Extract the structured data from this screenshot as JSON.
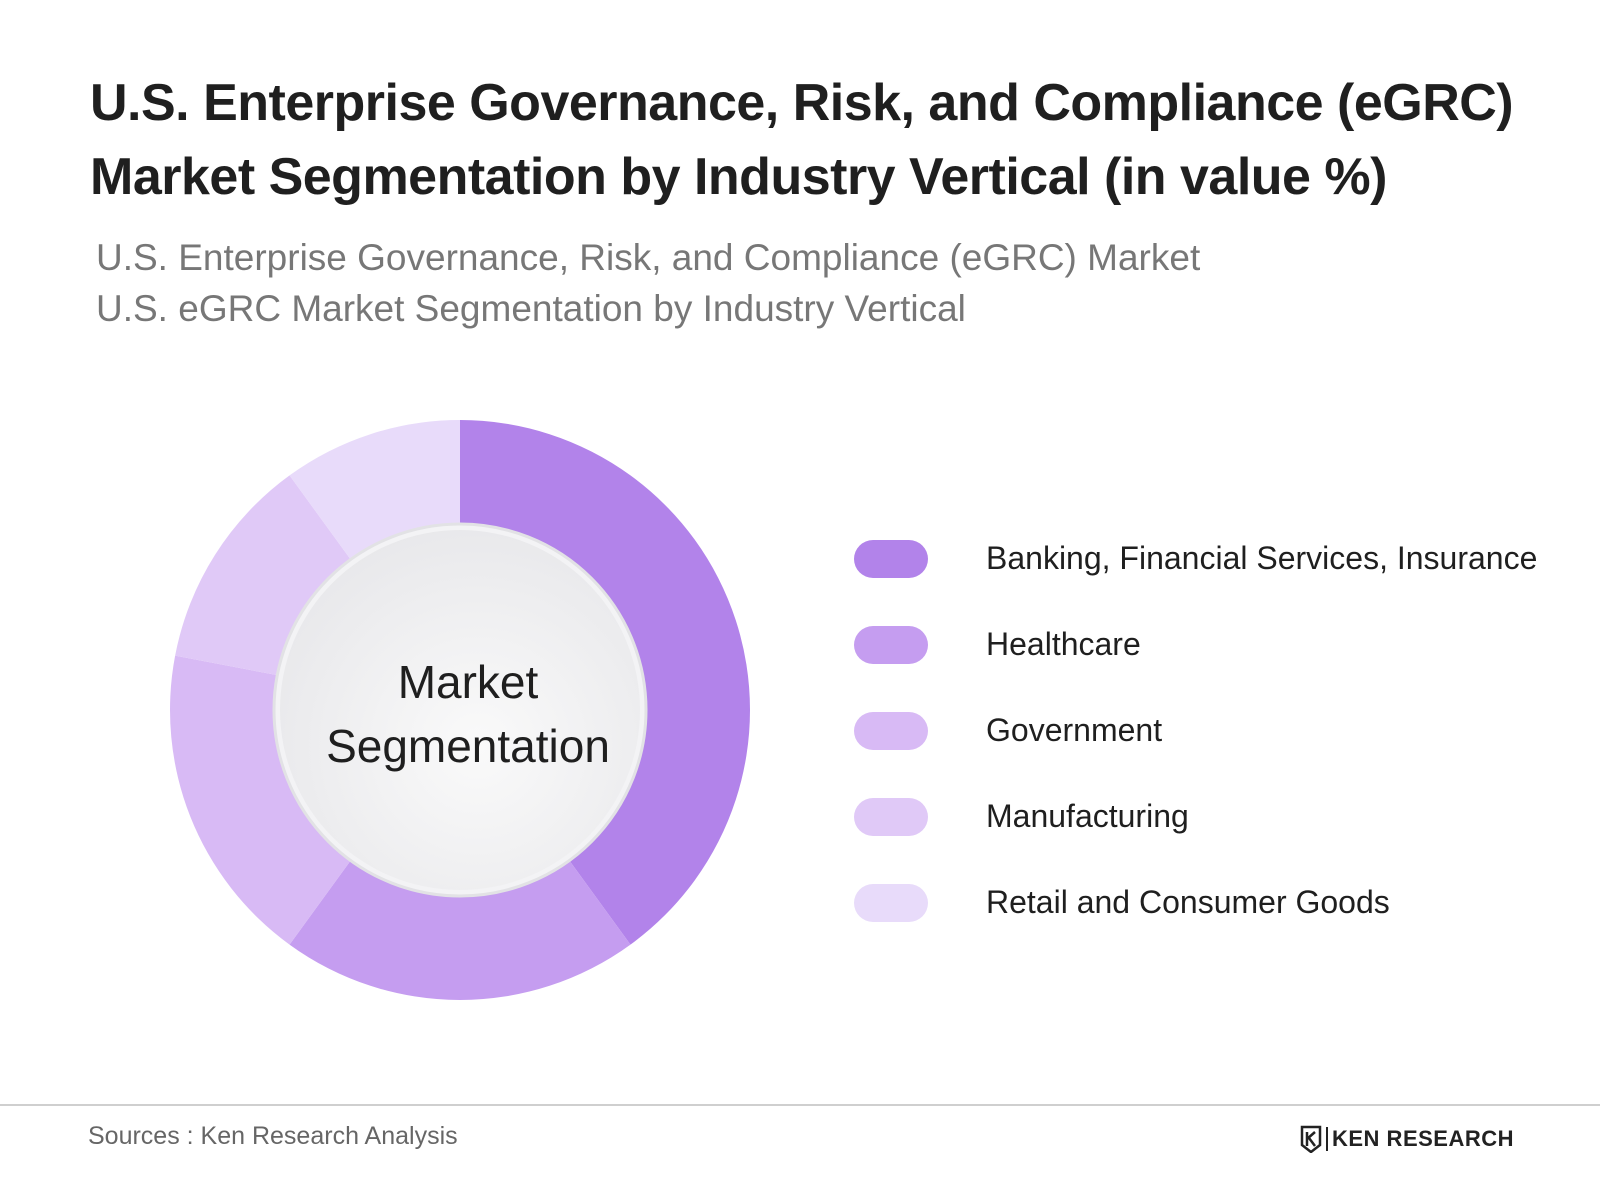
{
  "title_line1": "U.S. Enterprise Governance, Risk, and Compliance (eGRC)",
  "title_line2": "Market Segmentation by Industry Vertical (in value %)",
  "subtitle_line1": "U.S. Enterprise Governance, Risk, and Compliance (eGRC) Market",
  "subtitle_line2": "U.S. eGRC Market Segmentation by Industry Vertical",
  "center_label_line1": "Market",
  "center_label_line2": "Segmentation",
  "sources": "Sources : Ken Research Analysis",
  "brand": "KEN RESEARCH",
  "colors": {
    "background": "#ffffff",
    "center_fill": "#eeeef0"
  },
  "chart_data": {
    "type": "pie",
    "style": "donut",
    "labels": [
      "Banking, Financial Services, Insurance",
      "Healthcare",
      "Government",
      "Manufacturing",
      "Retail and Consumer Goods"
    ],
    "values": [
      40,
      20,
      18,
      12,
      10
    ],
    "colors": [
      "#b283ea",
      "#c59df0",
      "#d8baf5",
      "#e0c9f7",
      "#e8dbfa"
    ],
    "legend_position": "right"
  }
}
